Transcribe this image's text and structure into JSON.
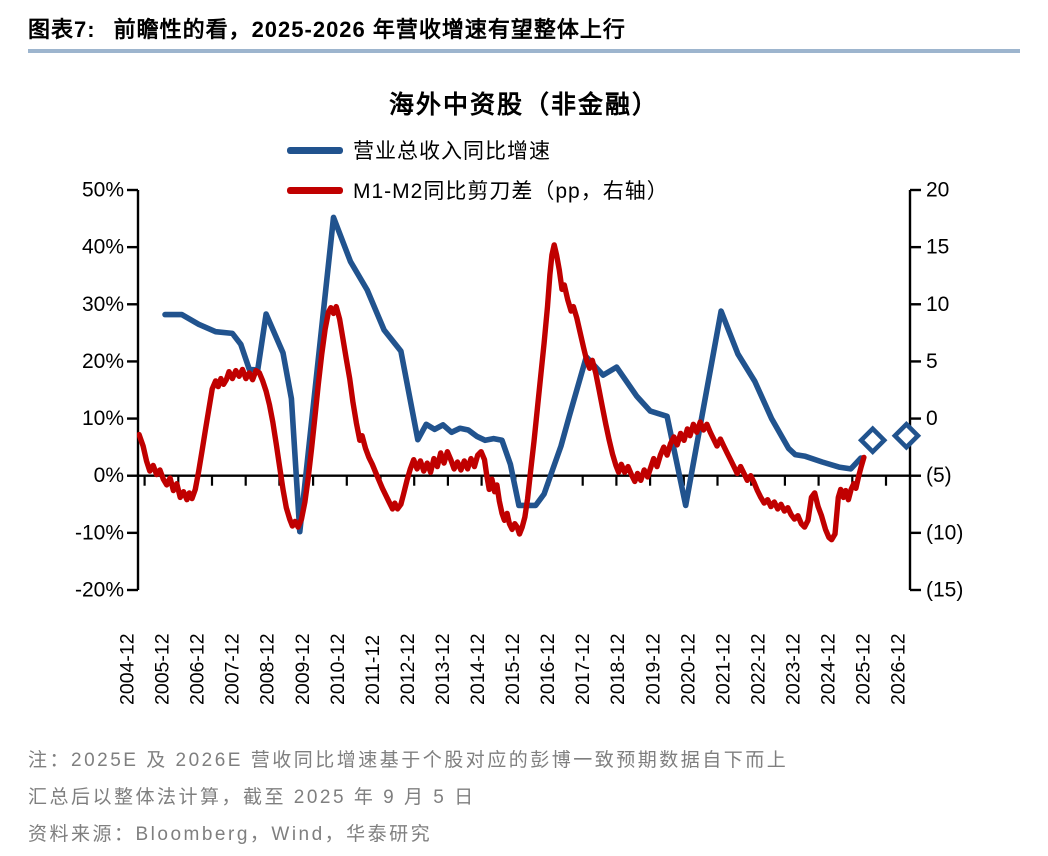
{
  "header": {
    "figure_label": "图表7:",
    "title": "前瞻性的看，2025-2026 年营收增速有望整体上行"
  },
  "chart": {
    "title": "海外中资股（非金融）"
  },
  "legend": [
    {
      "label": "营业总收入同比增速",
      "color": "#21538e"
    },
    {
      "label": "M1-M2同比剪刀差（pp，右轴）",
      "color": "#c00000"
    }
  ],
  "notes": {
    "line1": "注：2025E 及 2026E 营收同比增速基于个股对应的彭博一致预期数据自下而上",
    "line2": "汇总后以整体法计算，截至 2025 年 9 月 5 日",
    "source": "资料来源：Bloomberg，Wind，华泰研究"
  },
  "colors": {
    "blue": "#21538e",
    "red": "#c00000",
    "rule": "#9db5ce",
    "note_gray": "#7f7f7f",
    "axis": "#000000"
  },
  "chart_data": {
    "type": "line",
    "title": "海外中资股（非金融）",
    "grid": false,
    "legend_position": "top",
    "x_axis": {
      "labels": [
        "2004-12",
        "2005-12",
        "2006-12",
        "2007-12",
        "2008-12",
        "2009-12",
        "2010-12",
        "2011-12",
        "2012-12",
        "2013-12",
        "2014-12",
        "2015-12",
        "2016-12",
        "2017-12",
        "2018-12",
        "2019-12",
        "2020-12",
        "2021-12",
        "2022-12",
        "2023-12",
        "2024-12",
        "2025-12",
        "2026-12"
      ]
    },
    "left_axis": {
      "tick_labels": [
        "50%",
        "40%",
        "30%",
        "20%",
        "10%",
        "0%",
        "-10%",
        "-20%"
      ],
      "tick_values": [
        50,
        40,
        30,
        20,
        10,
        0,
        -10,
        -20
      ],
      "min": -20,
      "max": 50
    },
    "right_axis": {
      "tick_labels": [
        "20",
        "15",
        "10",
        "5",
        "0",
        "(5)",
        "(10)",
        "(15)"
      ],
      "tick_values": [
        20,
        15,
        10,
        5,
        0,
        -5,
        -10,
        -15
      ],
      "min": -15,
      "max": 20
    },
    "series": [
      {
        "id": "revenue-growth",
        "name": "营业总收入同比增速",
        "axis": "left",
        "style": "line",
        "color": "#21538e",
        "width": 5.6,
        "points": [
          [
            0,
            28.2
          ],
          [
            0.5,
            28.2
          ],
          [
            1,
            26.5
          ],
          [
            1.5,
            25.2
          ],
          [
            2,
            24.9
          ],
          [
            2.25,
            23
          ],
          [
            2.5,
            18.6
          ],
          [
            2.75,
            18.5
          ],
          [
            3,
            28.3
          ],
          [
            3.5,
            21.5
          ],
          [
            3.75,
            13.5
          ],
          [
            4,
            -9.8
          ],
          [
            5,
            45.2
          ],
          [
            5.5,
            37.5
          ],
          [
            6,
            32.5
          ],
          [
            6.5,
            25.5
          ],
          [
            7,
            21.8
          ],
          [
            7.5,
            6.3
          ],
          [
            7.75,
            9
          ],
          [
            8,
            8.1
          ],
          [
            8.25,
            8.9
          ],
          [
            8.5,
            7.6
          ],
          [
            8.75,
            8.3
          ],
          [
            9,
            8
          ],
          [
            9.25,
            6.9
          ],
          [
            9.5,
            6.2
          ],
          [
            9.75,
            6.5
          ],
          [
            10,
            6.2
          ],
          [
            10.25,
            2
          ],
          [
            10.5,
            -5.2
          ],
          [
            11,
            -5.2
          ],
          [
            11.25,
            -3.2
          ],
          [
            11.5,
            1
          ],
          [
            11.75,
            5.2
          ],
          [
            12,
            10.5
          ],
          [
            12.5,
            20.8
          ],
          [
            13,
            17.6
          ],
          [
            13.4,
            19
          ],
          [
            14,
            13.9
          ],
          [
            14.4,
            11.3
          ],
          [
            14.9,
            10.4
          ],
          [
            15.45,
            -5.2
          ],
          [
            16.5,
            28.8
          ],
          [
            17,
            21.3
          ],
          [
            17.5,
            16.5
          ],
          [
            18,
            10
          ],
          [
            18.5,
            4.8
          ],
          [
            18.7,
            3.7
          ],
          [
            19,
            3.4
          ],
          [
            19.5,
            2.4
          ],
          [
            20,
            1.5
          ],
          [
            20.35,
            1.2
          ],
          [
            20.65,
            3.1
          ]
        ]
      },
      {
        "id": "m1-m2-spread",
        "name": "M1-M2同比剪刀差（pp，右轴）",
        "axis": "right",
        "style": "line",
        "color": "#c00000",
        "width": 5.4,
        "points": [
          [
            -0.77,
            -1.4
          ],
          [
            -0.65,
            -2.4
          ],
          [
            -0.55,
            -3.7
          ],
          [
            -0.45,
            -4.6
          ],
          [
            -0.35,
            -4.1
          ],
          [
            -0.25,
            -4.9
          ],
          [
            -0.15,
            -4.5
          ],
          [
            -0.05,
            -5.3
          ],
          [
            0.05,
            -5.8
          ],
          [
            0.15,
            -5.2
          ],
          [
            0.25,
            -6.3
          ],
          [
            0.35,
            -5.7
          ],
          [
            0.45,
            -6.9
          ],
          [
            0.55,
            -6.4
          ],
          [
            0.65,
            -7.1
          ],
          [
            0.72,
            -6.5
          ],
          [
            0.8,
            -7
          ],
          [
            0.9,
            -6.2
          ],
          [
            1,
            -4.6
          ],
          [
            1.1,
            -2.8
          ],
          [
            1.2,
            -1
          ],
          [
            1.3,
            0.8
          ],
          [
            1.4,
            2.6
          ],
          [
            1.5,
            3.3
          ],
          [
            1.58,
            2.8
          ],
          [
            1.66,
            3.5
          ],
          [
            1.74,
            3
          ],
          [
            1.82,
            3.4
          ],
          [
            1.9,
            4.1
          ],
          [
            2,
            3.5
          ],
          [
            2.1,
            4.2
          ],
          [
            2.2,
            3.7
          ],
          [
            2.3,
            4.3
          ],
          [
            2.4,
            3.5
          ],
          [
            2.5,
            4
          ],
          [
            2.6,
            3.4
          ],
          [
            2.7,
            4.2
          ],
          [
            2.8,
            4
          ],
          [
            2.9,
            3.3
          ],
          [
            3,
            2.4
          ],
          [
            3.1,
            1.2
          ],
          [
            3.2,
            -0.3
          ],
          [
            3.3,
            -2.2
          ],
          [
            3.4,
            -4.2
          ],
          [
            3.5,
            -6.2
          ],
          [
            3.6,
            -7.8
          ],
          [
            3.7,
            -8.8
          ],
          [
            3.78,
            -9.4
          ],
          [
            3.86,
            -9
          ],
          [
            3.95,
            -9.5
          ],
          [
            4.05,
            -8.8
          ],
          [
            4.15,
            -7.3
          ],
          [
            4.25,
            -5.2
          ],
          [
            4.35,
            -2.6
          ],
          [
            4.45,
            0.2
          ],
          [
            4.55,
            3
          ],
          [
            4.65,
            5.6
          ],
          [
            4.75,
            7.8
          ],
          [
            4.85,
            9.3
          ],
          [
            4.92,
            9.7
          ],
          [
            5,
            9.2
          ],
          [
            5.08,
            9.8
          ],
          [
            5.18,
            8.7
          ],
          [
            5.28,
            7
          ],
          [
            5.38,
            5.2
          ],
          [
            5.48,
            3.5
          ],
          [
            5.58,
            1.4
          ],
          [
            5.68,
            -0.4
          ],
          [
            5.78,
            -1.9
          ],
          [
            5.85,
            -1.5
          ],
          [
            5.95,
            -2.6
          ],
          [
            6.05,
            -3.4
          ],
          [
            6.15,
            -4
          ],
          [
            6.25,
            -4.7
          ],
          [
            6.35,
            -5.4
          ],
          [
            6.45,
            -6.1
          ],
          [
            6.55,
            -6.7
          ],
          [
            6.65,
            -7.3
          ],
          [
            6.75,
            -7.9
          ],
          [
            6.82,
            -7.4
          ],
          [
            6.9,
            -7.9
          ],
          [
            7,
            -7.5
          ],
          [
            7.08,
            -6.6
          ],
          [
            7.18,
            -5.4
          ],
          [
            7.28,
            -4.4
          ],
          [
            7.38,
            -3.6
          ],
          [
            7.48,
            -4.4
          ],
          [
            7.58,
            -3.7
          ],
          [
            7.68,
            -4.6
          ],
          [
            7.78,
            -3.9
          ],
          [
            7.88,
            -4.7
          ],
          [
            7.98,
            -3.5
          ],
          [
            8.08,
            -4.2
          ],
          [
            8.18,
            -3
          ],
          [
            8.28,
            -3.9
          ],
          [
            8.38,
            -2.9
          ],
          [
            8.48,
            -3.6
          ],
          [
            8.58,
            -4.4
          ],
          [
            8.68,
            -3.8
          ],
          [
            8.78,
            -4.5
          ],
          [
            8.88,
            -3.7
          ],
          [
            8.98,
            -4.4
          ],
          [
            9.08,
            -3.5
          ],
          [
            9.18,
            -4.2
          ],
          [
            9.28,
            -3.2
          ],
          [
            9.38,
            -2.9
          ],
          [
            9.48,
            -3.6
          ],
          [
            9.55,
            -5
          ],
          [
            9.62,
            -6.2
          ],
          [
            9.7,
            -5.3
          ],
          [
            9.78,
            -6.4
          ],
          [
            9.85,
            -5.8
          ],
          [
            9.92,
            -7.2
          ],
          [
            10,
            -8.3
          ],
          [
            10.07,
            -8.9
          ],
          [
            10.15,
            -8.3
          ],
          [
            10.22,
            -9.2
          ],
          [
            10.3,
            -9.7
          ],
          [
            10.38,
            -9.2
          ],
          [
            10.45,
            -9.5
          ],
          [
            10.52,
            -10.1
          ],
          [
            10.6,
            -9.5
          ],
          [
            10.68,
            -8.6
          ],
          [
            10.76,
            -7
          ],
          [
            10.85,
            -4.6
          ],
          [
            10.95,
            -2
          ],
          [
            11.05,
            0.9
          ],
          [
            11.15,
            3.8
          ],
          [
            11.25,
            6.6
          ],
          [
            11.35,
            9.8
          ],
          [
            11.42,
            12.6
          ],
          [
            11.48,
            14.3
          ],
          [
            11.55,
            15.2
          ],
          [
            11.62,
            14.3
          ],
          [
            11.7,
            13
          ],
          [
            11.78,
            11.3
          ],
          [
            11.85,
            11.7
          ],
          [
            11.95,
            10.4
          ],
          [
            12.05,
            9.4
          ],
          [
            12.12,
            9.8
          ],
          [
            12.22,
            8.8
          ],
          [
            12.32,
            7.5
          ],
          [
            12.42,
            6.2
          ],
          [
            12.52,
            5
          ],
          [
            12.6,
            4.4
          ],
          [
            12.68,
            5.1
          ],
          [
            12.78,
            4
          ],
          [
            12.88,
            2.5
          ],
          [
            12.98,
            1
          ],
          [
            13.08,
            -0.5
          ],
          [
            13.18,
            -1.9
          ],
          [
            13.28,
            -3.1
          ],
          [
            13.38,
            -4.1
          ],
          [
            13.46,
            -4.7
          ],
          [
            13.54,
            -4
          ],
          [
            13.64,
            -4.7
          ],
          [
            13.74,
            -4.2
          ],
          [
            13.84,
            -4.9
          ],
          [
            13.94,
            -5.5
          ],
          [
            14.02,
            -4.8
          ],
          [
            14.12,
            -5.4
          ],
          [
            14.22,
            -4.5
          ],
          [
            14.32,
            -5.1
          ],
          [
            14.42,
            -4.2
          ],
          [
            14.5,
            -3.5
          ],
          [
            14.6,
            -4.2
          ],
          [
            14.7,
            -3.2
          ],
          [
            14.8,
            -2.5
          ],
          [
            14.9,
            -3.2
          ],
          [
            15,
            -2.2
          ],
          [
            15.1,
            -1.6
          ],
          [
            15.2,
            -2.3
          ],
          [
            15.3,
            -1.3
          ],
          [
            15.4,
            -1.9
          ],
          [
            15.5,
            -0.9
          ],
          [
            15.58,
            -1.5
          ],
          [
            15.68,
            -0.5
          ],
          [
            15.78,
            -1.2
          ],
          [
            15.88,
            -0.3
          ],
          [
            15.98,
            -1
          ],
          [
            16.08,
            -0.5
          ],
          [
            16.18,
            -1.2
          ],
          [
            16.28,
            -1.8
          ],
          [
            16.38,
            -2.4
          ],
          [
            16.48,
            -1.8
          ],
          [
            16.58,
            -2.4
          ],
          [
            16.68,
            -3
          ],
          [
            16.78,
            -3.6
          ],
          [
            16.88,
            -4.2
          ],
          [
            16.98,
            -4.8
          ],
          [
            17.08,
            -4.2
          ],
          [
            17.18,
            -4.8
          ],
          [
            17.28,
            -5.4
          ],
          [
            17.38,
            -5
          ],
          [
            17.48,
            -5.6
          ],
          [
            17.58,
            -6.3
          ],
          [
            17.68,
            -6.9
          ],
          [
            17.78,
            -7.4
          ],
          [
            17.88,
            -7.1
          ],
          [
            17.98,
            -7.7
          ],
          [
            18.08,
            -7.3
          ],
          [
            18.18,
            -7.9
          ],
          [
            18.28,
            -7.5
          ],
          [
            18.38,
            -8.1
          ],
          [
            18.48,
            -7.8
          ],
          [
            18.58,
            -8.4
          ],
          [
            18.68,
            -8.8
          ],
          [
            18.78,
            -8.5
          ],
          [
            18.88,
            -9.2
          ],
          [
            18.98,
            -9.5
          ],
          [
            19.08,
            -8.9
          ],
          [
            19.18,
            -6.9
          ],
          [
            19.28,
            -6.5
          ],
          [
            19.38,
            -7.7
          ],
          [
            19.48,
            -8.5
          ],
          [
            19.6,
            -9.7
          ],
          [
            19.7,
            -10.4
          ],
          [
            19.78,
            -10.6
          ],
          [
            19.88,
            -10.1
          ],
          [
            19.98,
            -6.9
          ],
          [
            20.05,
            -6.2
          ],
          [
            20.13,
            -6.9
          ],
          [
            20.2,
            -6.3
          ],
          [
            20.28,
            -7.1
          ],
          [
            20.36,
            -6.2
          ],
          [
            20.44,
            -5.7
          ],
          [
            20.5,
            -6.1
          ],
          [
            20.58,
            -5.1
          ],
          [
            20.66,
            -4.2
          ],
          [
            20.74,
            -3.4
          ]
        ]
      },
      {
        "id": "revenue-growth-forecast",
        "name": "2025E/2026E",
        "axis": "left",
        "style": "diamonds",
        "color": "#21538e",
        "width": 4.6,
        "points": [
          [
            21,
            6.2
          ],
          [
            22,
            7
          ]
        ]
      }
    ]
  }
}
